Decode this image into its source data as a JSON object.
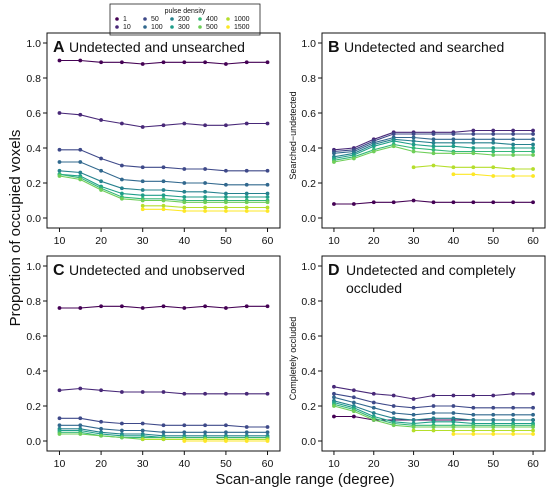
{
  "figure": {
    "ylabel": "Proportion of occupied voxels",
    "xlabel": "Scan-angle range (degree)"
  },
  "legend": {
    "title": "pulse density",
    "items": [
      {
        "label": "1",
        "color": "#440154"
      },
      {
        "label": "10",
        "color": "#482878"
      },
      {
        "label": "50",
        "color": "#3e4989"
      },
      {
        "label": "100",
        "color": "#31688e"
      },
      {
        "label": "200",
        "color": "#26828e"
      },
      {
        "label": "300",
        "color": "#1f9e89"
      },
      {
        "label": "400",
        "color": "#35b779"
      },
      {
        "label": "500",
        "color": "#6ece58"
      },
      {
        "label": "1000",
        "color": "#b5de2b"
      },
      {
        "label": "1500",
        "color": "#fde725"
      }
    ]
  },
  "chart_data": [
    {
      "type": "line",
      "letter": "A",
      "title": "Undetected and unsearched",
      "ylabel": "",
      "x": [
        10,
        15,
        20,
        25,
        30,
        35,
        40,
        45,
        50,
        55,
        60
      ],
      "xticks": [
        10,
        20,
        30,
        40,
        50,
        60
      ],
      "yticks": [
        "0.0",
        "0.2",
        "0.4",
        "0.6",
        "0.8",
        "1.0"
      ],
      "ylim": [
        0,
        1
      ],
      "series": [
        {
          "density": "1",
          "values": [
            0.9,
            0.9,
            0.89,
            0.89,
            0.88,
            0.89,
            0.89,
            0.89,
            0.88,
            0.89,
            0.89
          ]
        },
        {
          "density": "10",
          "values": [
            0.6,
            0.59,
            0.56,
            0.54,
            0.52,
            0.53,
            0.54,
            0.53,
            0.53,
            0.54,
            0.54
          ]
        },
        {
          "density": "50",
          "values": [
            0.39,
            0.39,
            0.34,
            0.3,
            0.29,
            0.29,
            0.28,
            0.28,
            0.27,
            0.27,
            0.27
          ]
        },
        {
          "density": "100",
          "values": [
            0.32,
            0.32,
            0.27,
            0.22,
            0.21,
            0.21,
            0.2,
            0.2,
            0.19,
            0.19,
            0.19
          ]
        },
        {
          "density": "200",
          "values": [
            0.27,
            0.26,
            0.21,
            0.17,
            0.16,
            0.16,
            0.15,
            0.15,
            0.14,
            0.14,
            0.14
          ]
        },
        {
          "density": "300",
          "values": [
            0.25,
            0.24,
            0.18,
            0.14,
            0.13,
            0.13,
            0.12,
            0.12,
            0.12,
            0.12,
            0.12
          ]
        },
        {
          "density": "400",
          "values": [
            0.25,
            0.23,
            0.17,
            0.12,
            0.11,
            0.11,
            0.1,
            0.1,
            0.1,
            0.1,
            0.1
          ]
        },
        {
          "density": "500",
          "values": [
            0.24,
            0.22,
            0.16,
            0.11,
            0.1,
            0.1,
            0.09,
            0.09,
            0.09,
            0.09,
            0.09
          ]
        },
        {
          "density": "1000",
          "values": [
            null,
            null,
            null,
            null,
            0.07,
            0.07,
            0.06,
            0.06,
            0.06,
            0.06,
            0.06
          ]
        },
        {
          "density": "1500",
          "values": [
            null,
            null,
            null,
            null,
            0.05,
            0.05,
            0.04,
            0.04,
            0.04,
            0.04,
            0.04
          ]
        }
      ]
    },
    {
      "type": "line",
      "letter": "B",
      "title": "Undetected and searched",
      "ylabel": "Searched−undetected",
      "x": [
        10,
        15,
        20,
        25,
        30,
        35,
        40,
        45,
        50,
        55,
        60
      ],
      "xticks": [
        10,
        20,
        30,
        40,
        50,
        60
      ],
      "yticks": [
        "0.0",
        "0.2",
        "0.4",
        "0.6",
        "0.8",
        "1.0"
      ],
      "ylim": [
        0,
        1
      ],
      "series": [
        {
          "density": "1",
          "values": [
            0.08,
            0.08,
            0.09,
            0.09,
            0.1,
            0.09,
            0.09,
            0.09,
            0.09,
            0.09,
            0.09
          ]
        },
        {
          "density": "10",
          "values": [
            0.39,
            0.4,
            0.45,
            0.49,
            0.49,
            0.49,
            0.49,
            0.5,
            0.5,
            0.5,
            0.5
          ]
        },
        {
          "density": "50",
          "values": [
            0.38,
            0.39,
            0.44,
            0.48,
            0.48,
            0.48,
            0.48,
            0.48,
            0.48,
            0.48,
            0.48
          ]
        },
        {
          "density": "100",
          "values": [
            0.37,
            0.38,
            0.43,
            0.46,
            0.46,
            0.45,
            0.45,
            0.45,
            0.45,
            0.45,
            0.45
          ]
        },
        {
          "density": "200",
          "values": [
            0.35,
            0.37,
            0.42,
            0.45,
            0.44,
            0.43,
            0.43,
            0.43,
            0.43,
            0.42,
            0.42
          ]
        },
        {
          "density": "300",
          "values": [
            0.34,
            0.36,
            0.41,
            0.44,
            0.42,
            0.41,
            0.41,
            0.4,
            0.4,
            0.4,
            0.4
          ]
        },
        {
          "density": "400",
          "values": [
            0.33,
            0.35,
            0.39,
            0.42,
            0.4,
            0.39,
            0.38,
            0.38,
            0.38,
            0.38,
            0.38
          ]
        },
        {
          "density": "500",
          "values": [
            0.32,
            0.34,
            0.38,
            0.41,
            0.38,
            0.37,
            0.37,
            0.37,
            0.36,
            0.36,
            0.36
          ]
        },
        {
          "density": "1000",
          "values": [
            null,
            null,
            null,
            null,
            0.29,
            0.3,
            0.29,
            0.29,
            0.29,
            0.28,
            0.28
          ]
        },
        {
          "density": "1500",
          "values": [
            null,
            null,
            null,
            null,
            null,
            null,
            0.25,
            0.25,
            0.24,
            0.24,
            0.24
          ]
        }
      ]
    },
    {
      "type": "line",
      "letter": "C",
      "title": "Undetected and unobserved",
      "ylabel": "",
      "x": [
        10,
        15,
        20,
        25,
        30,
        35,
        40,
        45,
        50,
        55,
        60
      ],
      "xticks": [
        10,
        20,
        30,
        40,
        50,
        60
      ],
      "yticks": [
        "0.0",
        "0.2",
        "0.4",
        "0.6",
        "0.8",
        "1.0"
      ],
      "ylim": [
        0,
        1
      ],
      "series": [
        {
          "density": "1",
          "values": [
            0.76,
            0.76,
            0.77,
            0.77,
            0.76,
            0.77,
            0.76,
            0.77,
            0.76,
            0.77,
            0.77
          ]
        },
        {
          "density": "10",
          "values": [
            0.29,
            0.3,
            0.29,
            0.28,
            0.28,
            0.28,
            0.27,
            0.27,
            0.27,
            0.27,
            0.27
          ]
        },
        {
          "density": "50",
          "values": [
            0.13,
            0.13,
            0.11,
            0.1,
            0.1,
            0.09,
            0.09,
            0.09,
            0.09,
            0.08,
            0.08
          ]
        },
        {
          "density": "100",
          "values": [
            0.09,
            0.09,
            0.07,
            0.06,
            0.06,
            0.05,
            0.05,
            0.05,
            0.05,
            0.05,
            0.05
          ]
        },
        {
          "density": "200",
          "values": [
            0.07,
            0.07,
            0.05,
            0.04,
            0.04,
            0.03,
            0.03,
            0.03,
            0.03,
            0.03,
            0.03
          ]
        },
        {
          "density": "300",
          "values": [
            0.06,
            0.06,
            0.04,
            0.03,
            0.03,
            0.02,
            0.02,
            0.02,
            0.02,
            0.02,
            0.02
          ]
        },
        {
          "density": "400",
          "values": [
            0.05,
            0.05,
            0.03,
            0.02,
            0.02,
            0.02,
            0.02,
            0.02,
            0.02,
            0.02,
            0.02
          ]
        },
        {
          "density": "500",
          "values": [
            0.04,
            0.04,
            0.03,
            0.02,
            0.01,
            0.01,
            0.01,
            0.01,
            0.01,
            0.01,
            0.01
          ]
        },
        {
          "density": "1000",
          "values": [
            null,
            null,
            null,
            null,
            0.01,
            0.01,
            0.01,
            0.01,
            0.01,
            0.01,
            0.01
          ]
        },
        {
          "density": "1500",
          "values": [
            null,
            null,
            null,
            null,
            null,
            null,
            0.0,
            0.0,
            0.0,
            0.0,
            0.0
          ]
        }
      ]
    },
    {
      "type": "line",
      "letter": "D",
      "title": "Undetected and completely occluded",
      "ylabel": "Completely occluded",
      "x": [
        10,
        15,
        20,
        25,
        30,
        35,
        40,
        45,
        50,
        55,
        60
      ],
      "xticks": [
        10,
        20,
        30,
        40,
        50,
        60
      ],
      "yticks": [
        "0.0",
        "0.2",
        "0.4",
        "0.6",
        "0.8",
        "1.0"
      ],
      "ylim": [
        0,
        1
      ],
      "series": [
        {
          "density": "1",
          "values": [
            0.14,
            0.14,
            0.12,
            0.12,
            0.12,
            0.12,
            0.12,
            0.12,
            0.12,
            0.12,
            0.12
          ]
        },
        {
          "density": "10",
          "values": [
            0.31,
            0.29,
            0.27,
            0.26,
            0.24,
            0.26,
            0.26,
            0.26,
            0.26,
            0.27,
            0.27
          ]
        },
        {
          "density": "50",
          "values": [
            0.27,
            0.25,
            0.22,
            0.2,
            0.19,
            0.2,
            0.2,
            0.19,
            0.19,
            0.19,
            0.19
          ]
        },
        {
          "density": "100",
          "values": [
            0.25,
            0.22,
            0.19,
            0.16,
            0.15,
            0.16,
            0.16,
            0.15,
            0.15,
            0.15,
            0.15
          ]
        },
        {
          "density": "200",
          "values": [
            0.23,
            0.2,
            0.16,
            0.13,
            0.12,
            0.13,
            0.13,
            0.12,
            0.12,
            0.12,
            0.12
          ]
        },
        {
          "density": "300",
          "values": [
            0.22,
            0.19,
            0.14,
            0.11,
            0.1,
            0.11,
            0.11,
            0.1,
            0.1,
            0.1,
            0.1
          ]
        },
        {
          "density": "400",
          "values": [
            0.21,
            0.18,
            0.13,
            0.1,
            0.09,
            0.09,
            0.09,
            0.09,
            0.09,
            0.09,
            0.09
          ]
        },
        {
          "density": "500",
          "values": [
            0.2,
            0.17,
            0.12,
            0.09,
            0.08,
            0.08,
            0.08,
            0.08,
            0.08,
            0.08,
            0.08
          ]
        },
        {
          "density": "1000",
          "values": [
            null,
            null,
            null,
            null,
            0.06,
            0.06,
            0.06,
            0.06,
            0.06,
            0.06,
            0.06
          ]
        },
        {
          "density": "1500",
          "values": [
            null,
            null,
            null,
            null,
            null,
            null,
            0.04,
            0.04,
            0.04,
            0.04,
            0.04
          ]
        }
      ]
    }
  ]
}
